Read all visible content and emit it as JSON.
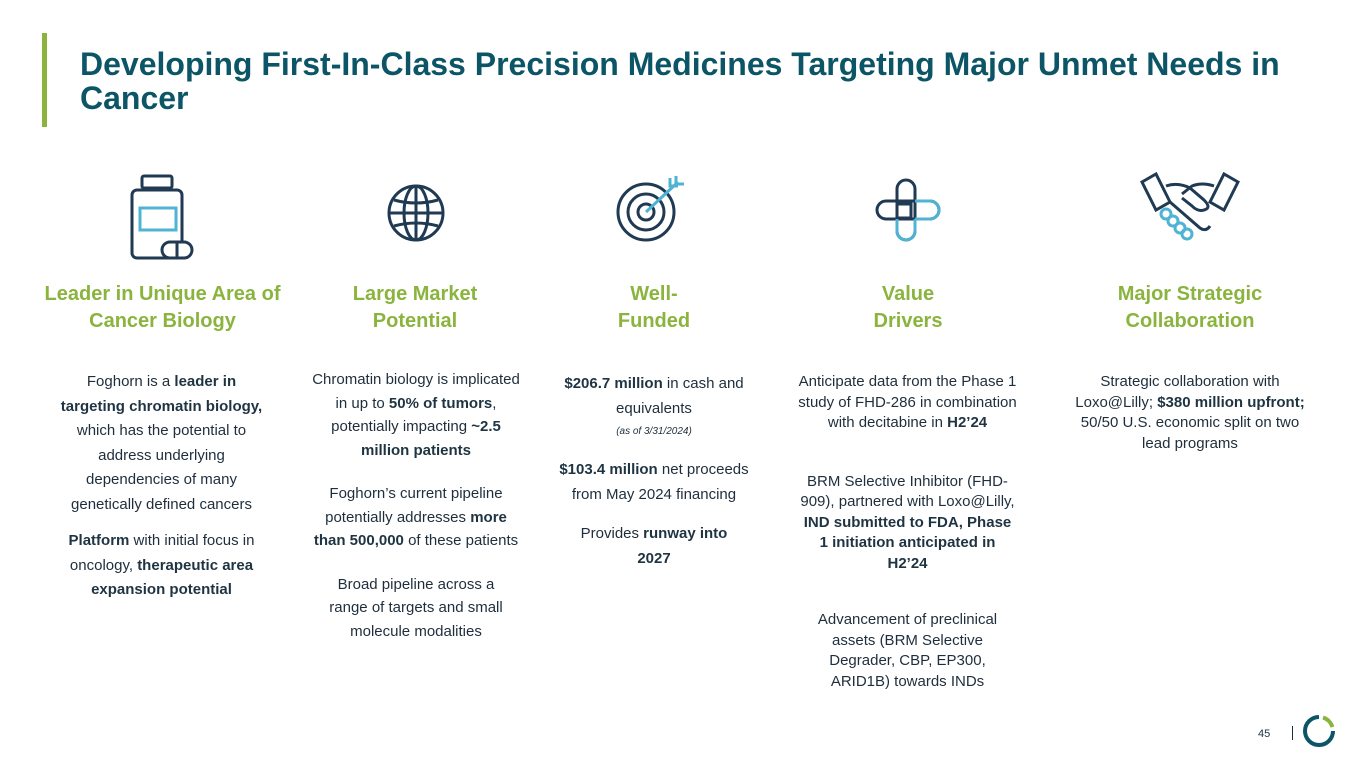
{
  "slide": {
    "title": "Developing First-In-Class Precision Medicines Targeting Major Unmet Needs in Cancer",
    "page_number": "45"
  },
  "columns": [
    {
      "icon": "pill-bottle-icon",
      "heading": "Leader in Unique Area of Cancer Biology",
      "p1": {
        "a": "Foghorn is a ",
        "b": "leader in targeting chromatin biology,",
        "c": " which has the potential to address underlying dependencies of many genetically defined cancers"
      },
      "p2": {
        "a": "Platform",
        "b": " with initial focus in oncology, ",
        "c": "therapeutic area expansion potential"
      }
    },
    {
      "icon": "globe-icon",
      "heading": "Large Market Potential",
      "p1": {
        "a": "Chromatin biology is implicated in up to ",
        "b": "50% of tumors",
        "c": ", potentially impacting ",
        "d": "~2.5 million patients"
      },
      "p2": {
        "a": "Foghorn’s current pipeline potentially addresses ",
        "b": "more than 500,000",
        "c": " of these patients"
      },
      "p3": "Broad pipeline across a range of targets and small molecule modalities"
    },
    {
      "icon": "target-icon",
      "heading": "Well-Funded",
      "p1": {
        "a": "$206.7 million",
        "b": " in cash and equivalents"
      },
      "note": "(as of 3/31/2024)",
      "p2": {
        "a": "$103.4 million",
        "b": " net proceeds from May 2024 financing"
      },
      "p3": {
        "a": "Provides ",
        "b": "runway into 2027"
      }
    },
    {
      "icon": "medical-cross-icon",
      "heading": "Value Drivers",
      "p1": {
        "a": "Anticipate data from the Phase 1 study of FHD-286 in combination with decitabine in ",
        "b": "H2’24"
      },
      "p2": {
        "a": "BRM Selective Inhibitor (FHD-909), partnered with Loxo@Lilly, ",
        "b": "IND submitted to FDA, Phase 1 initiation anticipated in H2’24"
      },
      "p3": "Advancement of preclinical assets (BRM Selective Degrader, CBP, EP300, ARID1B) towards INDs"
    },
    {
      "icon": "handshake-icon",
      "heading": "Major Strategic Collaboration",
      "p1": {
        "a": "Strategic collaboration with Loxo@Lilly; ",
        "b": "$380 million upfront;",
        "c": " 50/50 U.S. economic split on two lead programs"
      }
    }
  ],
  "colors": {
    "title": "#0c5566",
    "accent": "#8ab43e",
    "icon_dark": "#1f3a52",
    "icon_light": "#4fb3d3"
  }
}
